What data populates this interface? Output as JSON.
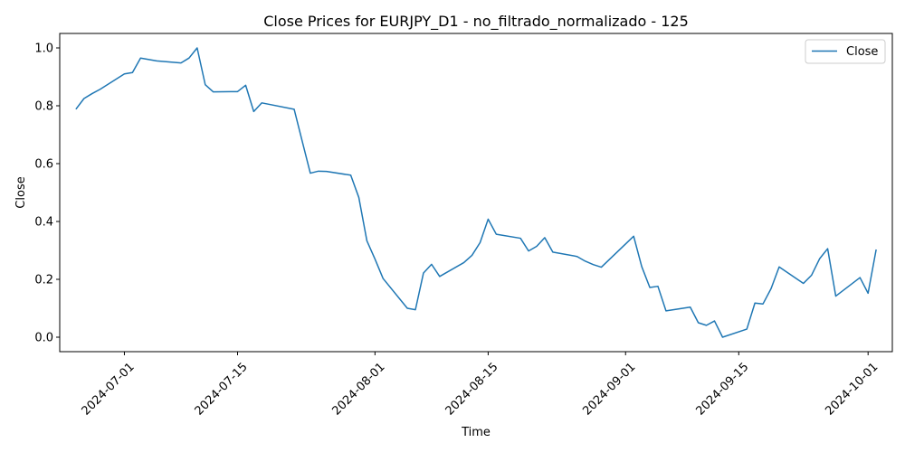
{
  "chart_data": {
    "type": "line",
    "title": "Close Prices for EURJPY_D1 - no_filtrado_normalizado - 125",
    "xlabel": "Time",
    "ylabel": "Close",
    "xlim": [
      "2024-06-23",
      "2024-10-04"
    ],
    "ylim": [
      -0.05,
      1.05
    ],
    "x_ticks": [
      "2024-07-01",
      "2024-07-15",
      "2024-08-01",
      "2024-08-15",
      "2024-09-01",
      "2024-09-15",
      "2024-10-01"
    ],
    "y_ticks": [
      "0.0",
      "0.2",
      "0.4",
      "0.6",
      "0.8",
      "1.0"
    ],
    "legend": {
      "position": "top-right",
      "entries": [
        "Close"
      ]
    },
    "grid": false,
    "series": [
      {
        "name": "Close",
        "color": "#1f77b4",
        "x": [
          "2024-06-25",
          "2024-06-26",
          "2024-06-27",
          "2024-06-28",
          "2024-07-01",
          "2024-07-02",
          "2024-07-03",
          "2024-07-05",
          "2024-07-08",
          "2024-07-09",
          "2024-07-10",
          "2024-07-11",
          "2024-07-12",
          "2024-07-15",
          "2024-07-16",
          "2024-07-17",
          "2024-07-18",
          "2024-07-22",
          "2024-07-23",
          "2024-07-24",
          "2024-07-25",
          "2024-07-26",
          "2024-07-29",
          "2024-07-30",
          "2024-07-31",
          "2024-08-01",
          "2024-08-02",
          "2024-08-05",
          "2024-08-06",
          "2024-08-07",
          "2024-08-08",
          "2024-08-09",
          "2024-08-12",
          "2024-08-13",
          "2024-08-14",
          "2024-08-15",
          "2024-08-16",
          "2024-08-19",
          "2024-08-20",
          "2024-08-21",
          "2024-08-22",
          "2024-08-23",
          "2024-08-26",
          "2024-08-27",
          "2024-08-28",
          "2024-08-29",
          "2024-09-02",
          "2024-09-03",
          "2024-09-04",
          "2024-09-05",
          "2024-09-06",
          "2024-09-09",
          "2024-09-10",
          "2024-09-11",
          "2024-09-12",
          "2024-09-13",
          "2024-09-16",
          "2024-09-17",
          "2024-09-18",
          "2024-09-19",
          "2024-09-20",
          "2024-09-23",
          "2024-09-24",
          "2024-09-25",
          "2024-09-26",
          "2024-09-27",
          "2024-09-30",
          "2024-10-01",
          "2024-10-02"
        ],
        "values": [
          0.788,
          0.825,
          0.842,
          0.857,
          0.91,
          0.915,
          0.965,
          0.955,
          0.948,
          0.965,
          1.0,
          0.873,
          0.848,
          0.849,
          0.871,
          0.78,
          0.81,
          0.788,
          0.677,
          0.567,
          0.574,
          0.573,
          0.56,
          0.483,
          0.333,
          0.27,
          0.203,
          0.1,
          0.095,
          0.222,
          0.252,
          0.21,
          0.258,
          0.283,
          0.327,
          0.408,
          0.356,
          0.342,
          0.298,
          0.314,
          0.344,
          0.294,
          0.279,
          0.263,
          0.251,
          0.242,
          0.349,
          0.244,
          0.172,
          0.176,
          0.091,
          0.104,
          0.05,
          0.041,
          0.056,
          0.0,
          0.028,
          0.118,
          0.115,
          0.168,
          0.243,
          0.186,
          0.214,
          0.271,
          0.306,
          0.142,
          0.206,
          0.152,
          0.303
        ]
      }
    ]
  }
}
